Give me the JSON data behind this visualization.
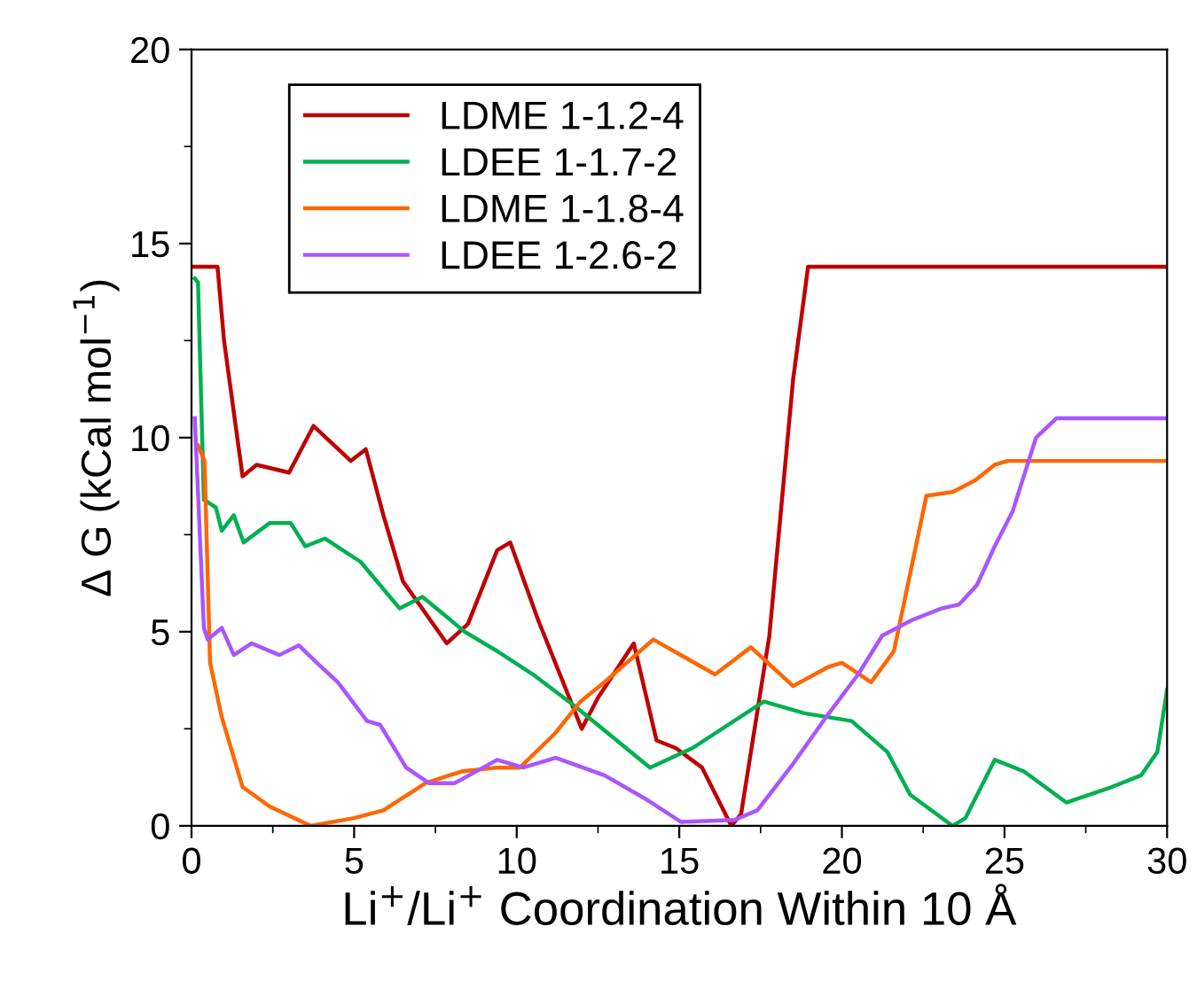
{
  "chart_data": {
    "type": "line",
    "xlabel": "Li$^{+}$/Li$^{+}$ Coordination Within 10 Å",
    "ylabel": "Δ G (kCal mol$^{−1}$)",
    "xlim": [
      0,
      30
    ],
    "ylim": [
      0,
      20
    ],
    "xticks": [
      0,
      5,
      10,
      15,
      20,
      25,
      30
    ],
    "yticks": [
      0,
      5,
      10,
      15,
      20
    ],
    "grid": false,
    "legend": "top left",
    "marker": "none",
    "line_style": "solid",
    "series": [
      {
        "name": "LDME 1-1.2-4",
        "color": "#c00000",
        "x": [
          0,
          0.8,
          1.0,
          1.57,
          2.0,
          3.0,
          3.75,
          4.9,
          5.36,
          5.9,
          6.5,
          7.85,
          8.5,
          9.4,
          9.8,
          10.66,
          12.0,
          12.5,
          13.6,
          14.3,
          14.9,
          15.7,
          16.6,
          16.9,
          17.77,
          18.5,
          18.96,
          30
        ],
        "values": [
          14.4,
          14.4,
          12.5,
          9.0,
          9.3,
          9.1,
          10.3,
          9.4,
          9.7,
          8.0,
          6.3,
          4.7,
          5.2,
          7.1,
          7.3,
          5.3,
          2.5,
          3.3,
          4.7,
          2.2,
          2.0,
          1.5,
          0.0,
          0.3,
          4.9,
          11.5,
          14.4,
          14.4
        ]
      },
      {
        "name": "LDEE 1-1.7-2",
        "color": "#00b050",
        "x": [
          0.1,
          0.2,
          0.38,
          0.75,
          0.93,
          1.3,
          1.6,
          2.4,
          3.05,
          3.5,
          4.1,
          5.2,
          6.4,
          7.1,
          8.4,
          9.4,
          10.5,
          11.76,
          14.1,
          15.4,
          17.6,
          18.85,
          20.3,
          21.4,
          22.1,
          23.4,
          23.8,
          24.7,
          25.6,
          26.9,
          28.3,
          29.2,
          29.7,
          30
        ],
        "values": [
          14.1,
          14.0,
          8.4,
          8.2,
          7.6,
          8.0,
          7.3,
          7.8,
          7.8,
          7.2,
          7.4,
          6.8,
          5.6,
          5.9,
          5.0,
          4.5,
          3.9,
          3.1,
          1.5,
          2.0,
          3.2,
          2.9,
          2.7,
          1.9,
          0.8,
          0.0,
          0.2,
          1.7,
          1.4,
          0.6,
          1.0,
          1.3,
          1.9,
          3.5
        ]
      },
      {
        "name": "LDME 1-1.8-4",
        "color": "#ff6600",
        "x": [
          0.2,
          0.4,
          0.57,
          0.93,
          1.57,
          2.4,
          3.66,
          5.0,
          5.9,
          7.2,
          8.3,
          9.4,
          10.1,
          11.2,
          11.96,
          12.7,
          14.2,
          16.1,
          17.2,
          18.5,
          19.6,
          20.0,
          20.9,
          21.6,
          22.6,
          23.4,
          24.1,
          24.7,
          25.1,
          30
        ],
        "values": [
          9.8,
          9.4,
          4.2,
          2.8,
          1.0,
          0.5,
          0.0,
          0.2,
          0.4,
          1.1,
          1.4,
          1.5,
          1.5,
          2.4,
          3.2,
          3.7,
          4.8,
          3.9,
          4.6,
          3.6,
          4.1,
          4.2,
          3.7,
          4.5,
          8.5,
          8.6,
          8.9,
          9.3,
          9.4,
          9.4
        ]
      },
      {
        "name": "LDEE 1-2.6-2",
        "color": "#aa55ff",
        "x": [
          0.1,
          0.38,
          0.5,
          0.93,
          1.3,
          1.85,
          2.7,
          3.3,
          3.85,
          4.5,
          5.4,
          5.8,
          6.6,
          7.3,
          8.1,
          9.4,
          10.2,
          11.2,
          12.7,
          13.95,
          15.05,
          16.7,
          17.4,
          18.5,
          19.6,
          20.5,
          21.24,
          22.15,
          23.06,
          23.6,
          24.15,
          24.7,
          25.25,
          25.97,
          26.6,
          30
        ],
        "values": [
          10.5,
          5.1,
          4.8,
          5.1,
          4.4,
          4.7,
          4.4,
          4.65,
          4.2,
          3.7,
          2.7,
          2.6,
          1.5,
          1.1,
          1.1,
          1.7,
          1.5,
          1.75,
          1.3,
          0.7,
          0.1,
          0.15,
          0.4,
          1.6,
          2.9,
          3.9,
          4.9,
          5.3,
          5.6,
          5.7,
          6.2,
          7.2,
          8.1,
          10.0,
          10.5,
          10.5
        ]
      }
    ]
  }
}
